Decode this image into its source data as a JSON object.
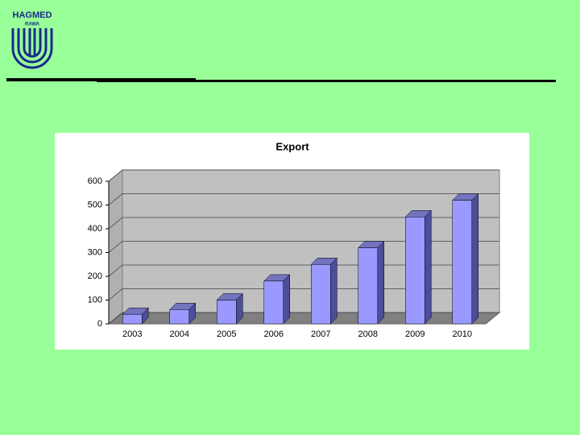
{
  "logo": {
    "name": "HAGMED",
    "sub": "RAWA"
  },
  "chart_data": {
    "type": "bar3d",
    "title": "Export",
    "categories": [
      "2003",
      "2004",
      "2005",
      "2006",
      "2007",
      "2008",
      "2009",
      "2010"
    ],
    "values": [
      40,
      60,
      100,
      180,
      250,
      320,
      450,
      520
    ],
    "color": "#9999ff",
    "ylim": [
      0,
      600
    ],
    "yticks": [
      0,
      100,
      200,
      300,
      400,
      500,
      600
    ],
    "grid": true
  }
}
